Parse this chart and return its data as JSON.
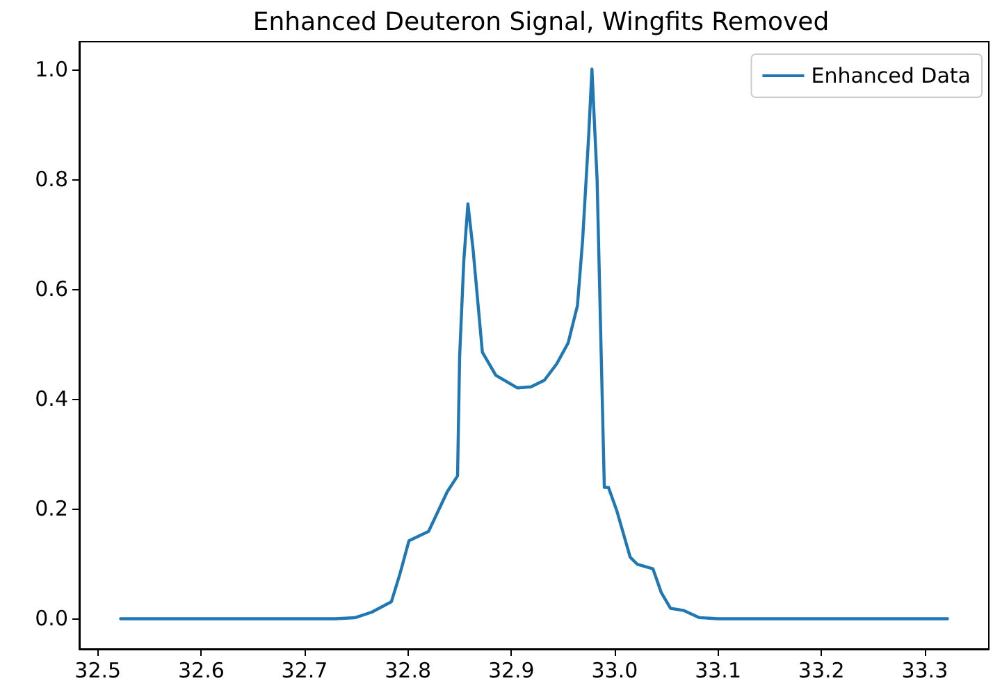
{
  "chart_data": {
    "type": "line",
    "title": "Enhanced Deuteron Signal, Wingfits Removed",
    "x": [
      32.522,
      32.56,
      32.6,
      32.65,
      32.7,
      32.73,
      32.749,
      32.765,
      32.784,
      32.792,
      32.801,
      32.82,
      32.838,
      32.848,
      32.85,
      32.854,
      32.858,
      32.863,
      32.872,
      32.885,
      32.906,
      32.919,
      32.932,
      32.944,
      32.955,
      32.964,
      32.969,
      32.975,
      32.978,
      32.983,
      32.99,
      32.994,
      33.002,
      33.015,
      33.022,
      33.037,
      33.045,
      33.054,
      33.067,
      33.082,
      33.1,
      33.15,
      33.2,
      33.25,
      33.3,
      33.322
    ],
    "series": [
      {
        "name": "Enhanced Data",
        "color": "#1f77b4",
        "values": [
          0,
          0,
          0,
          0,
          0,
          0,
          0.002,
          0.012,
          0.031,
          0.08,
          0.142,
          0.159,
          0.231,
          0.26,
          0.477,
          0.65,
          0.755,
          0.672,
          0.485,
          0.443,
          0.42,
          0.422,
          0.434,
          0.464,
          0.502,
          0.57,
          0.689,
          0.884,
          1.0,
          0.799,
          0.239,
          0.239,
          0.197,
          0.112,
          0.099,
          0.091,
          0.048,
          0.019,
          0.015,
          0.002,
          0,
          0,
          0,
          0,
          0,
          0
        ]
      }
    ],
    "xlim": [
      32.482,
      33.362
    ],
    "xticks": [
      32.5,
      32.6,
      32.7,
      32.8,
      32.9,
      {
        "value": 33.0,
        "label": "33.0"
      },
      33.1,
      33.2,
      33.3
    ],
    "ylim": [
      -0.055,
      1.05
    ],
    "yticks": [
      {
        "value": 0.0,
        "label": "0.0"
      },
      0.2,
      0.4,
      0.6,
      0.8,
      {
        "value": 1.0,
        "label": "1.0"
      }
    ],
    "legend": "top right",
    "grid": false,
    "marker": "none",
    "line_style": "solid"
  }
}
